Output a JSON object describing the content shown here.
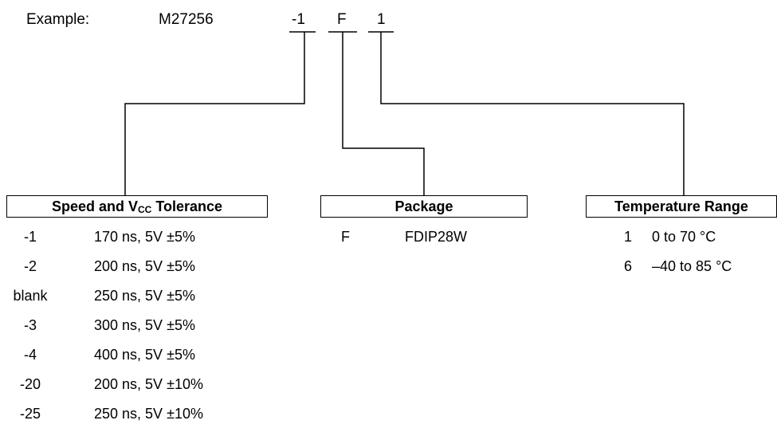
{
  "example": {
    "label": "Example:",
    "part": "M27256",
    "speed_code": "-1",
    "package_code": "F",
    "temp_code": "1"
  },
  "speed": {
    "header_before": "Speed and V",
    "header_sub": "CC",
    "header_after": " Tolerance",
    "rows": [
      {
        "code": "-1",
        "desc": "170 ns, 5V ±5%"
      },
      {
        "code": "-2",
        "desc": "200 ns, 5V ±5%"
      },
      {
        "code": "blank",
        "desc": "250 ns, 5V ±5%"
      },
      {
        "code": "-3",
        "desc": "300 ns, 5V ±5%"
      },
      {
        "code": "-4",
        "desc": "400 ns, 5V ±5%"
      },
      {
        "code": "-20",
        "desc": "200 ns, 5V ±10%"
      },
      {
        "code": "-25",
        "desc": "250 ns, 5V ±10%"
      }
    ]
  },
  "package": {
    "header": "Package",
    "rows": [
      {
        "code": "F",
        "desc": "FDIP28W"
      }
    ]
  },
  "temperature": {
    "header": "Temperature Range",
    "rows": [
      {
        "code": "1",
        "desc": "0 to 70 °C"
      },
      {
        "code": "6",
        "desc": "–40 to 85 °C"
      }
    ]
  }
}
